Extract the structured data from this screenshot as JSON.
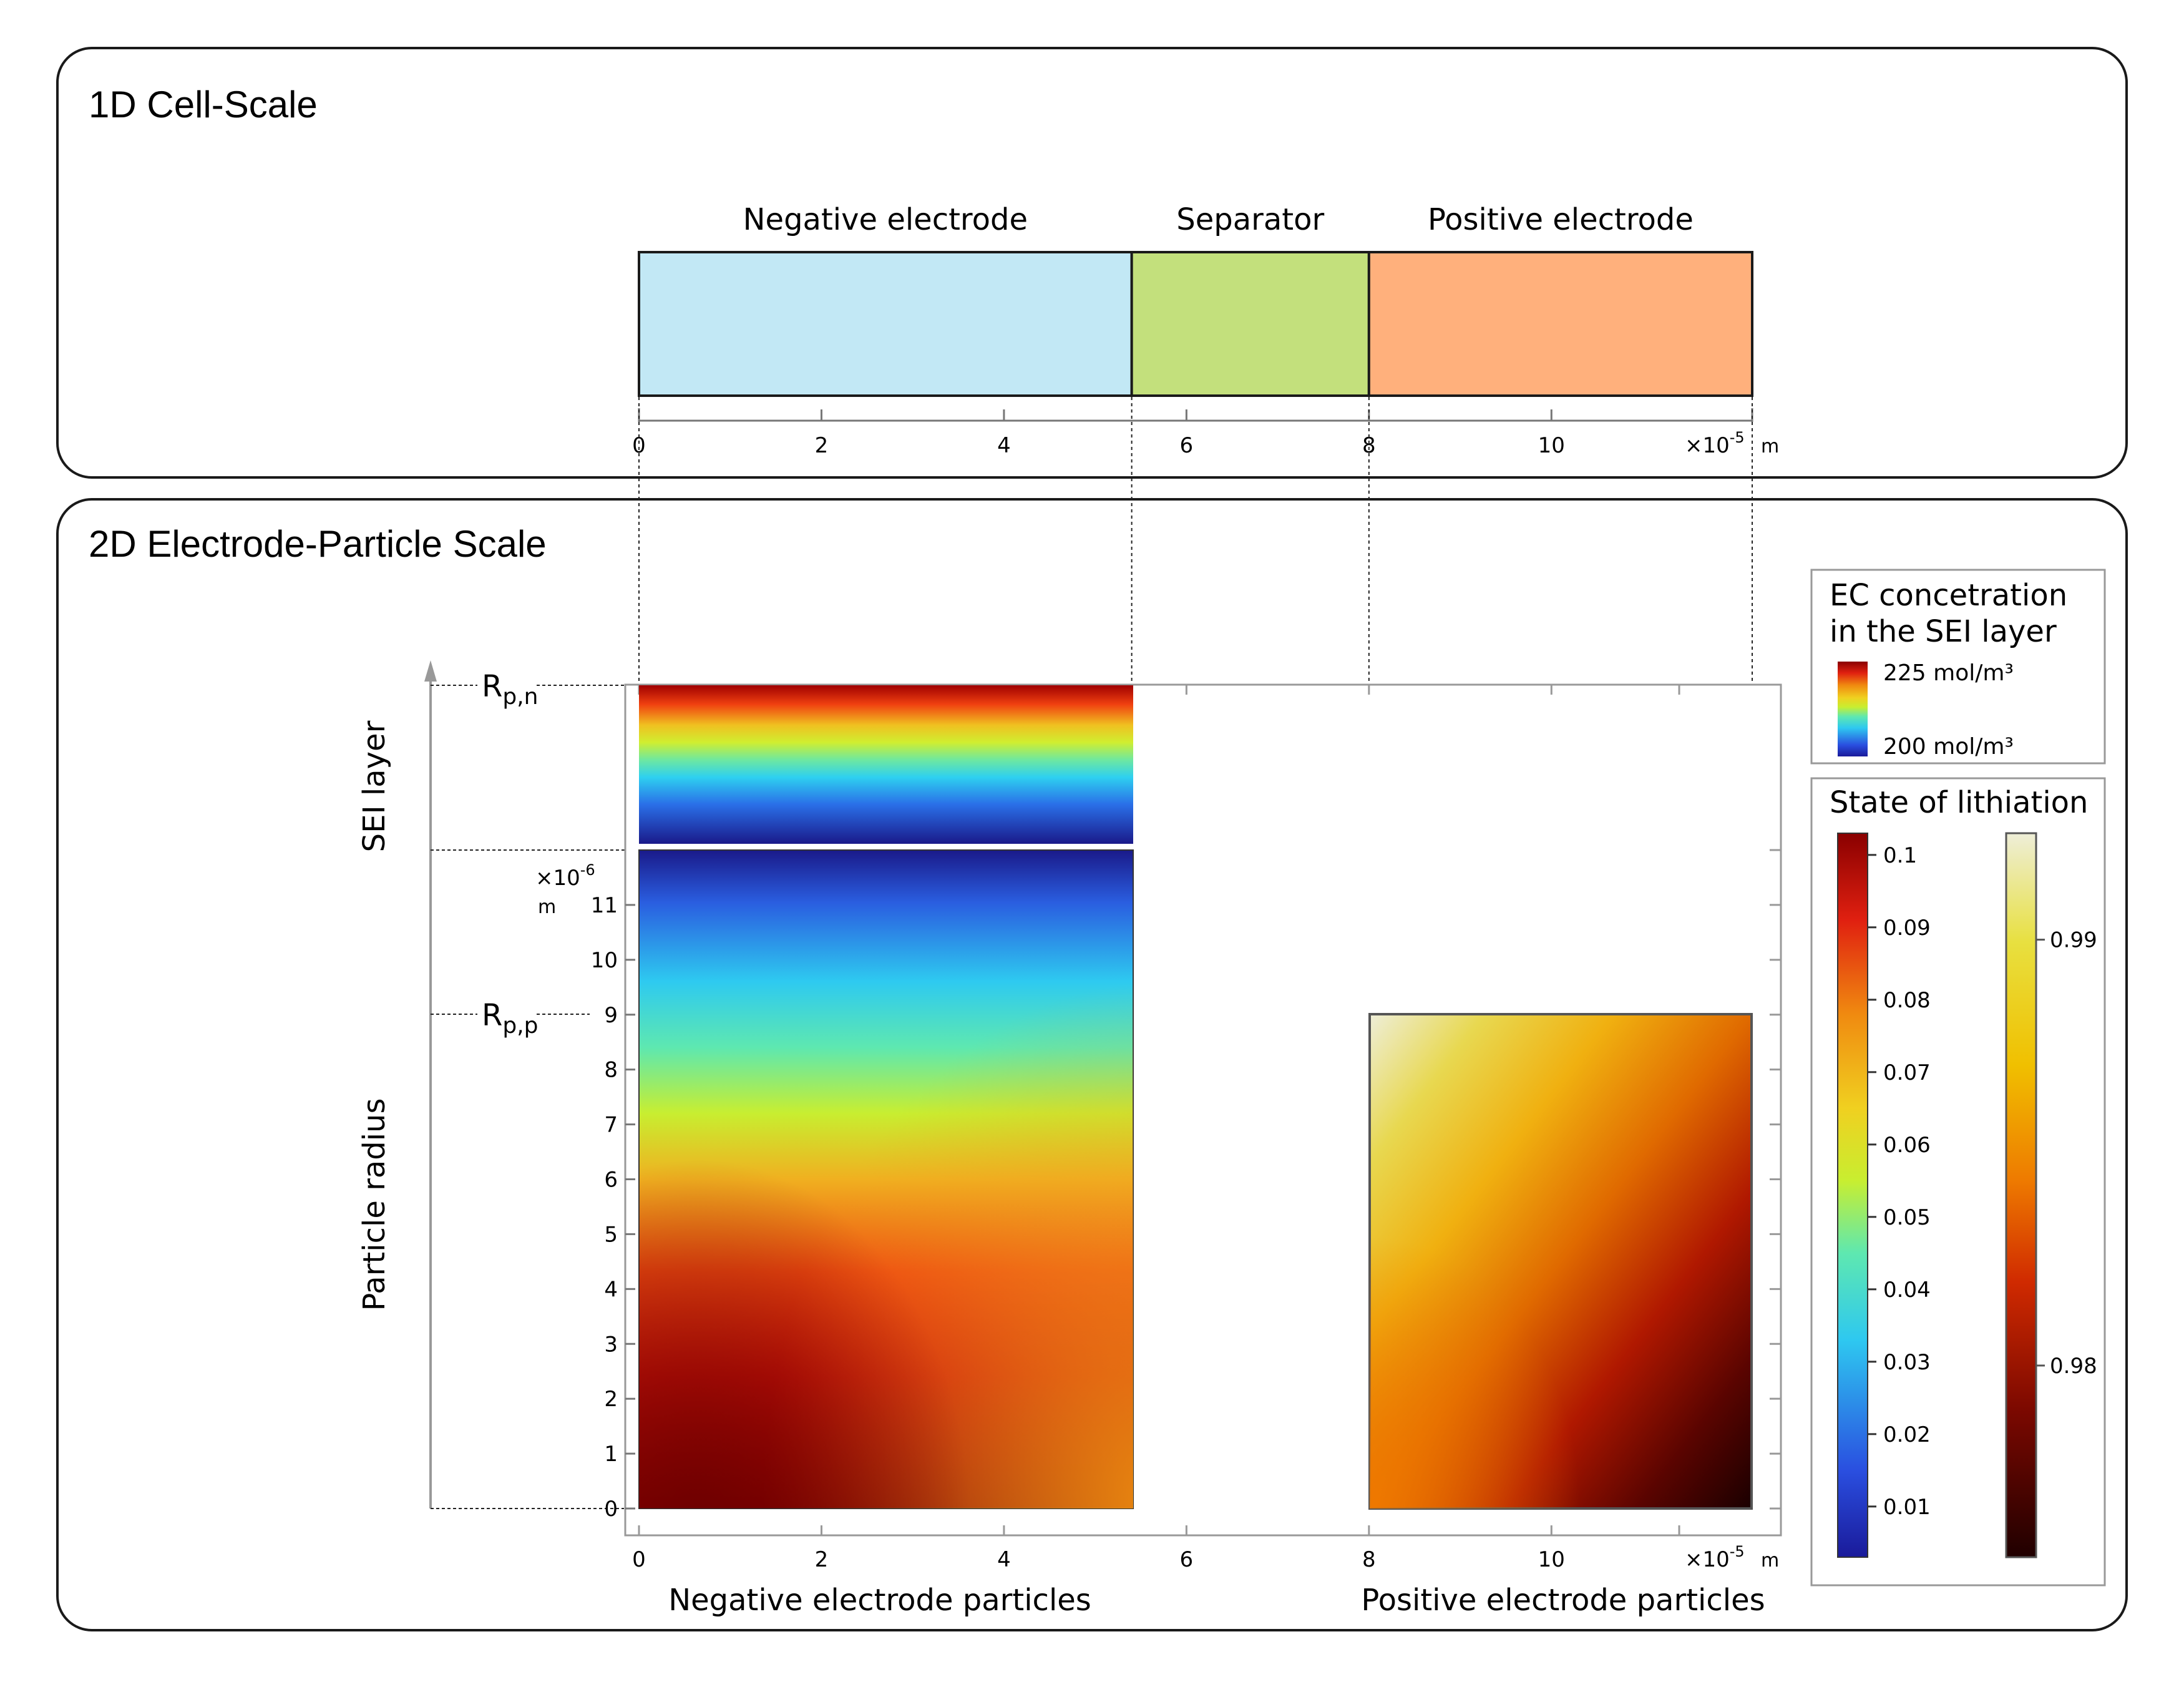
{
  "panels": {
    "cell_scale_title": "1D Cell-Scale",
    "particle_scale_title": "2D Electrode-Particle Scale"
  },
  "domains": [
    {
      "label": "Negative electrode",
      "x0": 0,
      "x1": 5.4,
      "color": "#c2e8f5"
    },
    {
      "label": "Separator",
      "x0": 5.4,
      "x1": 8.0,
      "color": "#c3e07c"
    },
    {
      "label": "Positive electrode",
      "x0": 8.0,
      "x1": 12.2,
      "color": "#ffb07c"
    }
  ],
  "x_axis": {
    "ticks": [
      "0",
      "2",
      "4",
      "6",
      "8",
      "10"
    ],
    "tick_values": [
      0,
      2,
      4,
      6,
      8,
      10
    ],
    "multiplier": "×10",
    "exponent": "-5",
    "unit": "m",
    "range": [
      0,
      12.2
    ]
  },
  "y_axis": {
    "ticks": [
      "0",
      "1",
      "2",
      "3",
      "4",
      "5",
      "6",
      "7",
      "8",
      "9",
      "10",
      "11"
    ],
    "tick_values": [
      0,
      1,
      2,
      3,
      4,
      5,
      6,
      7,
      8,
      9,
      10,
      11
    ],
    "multiplier": "×10",
    "exponent": "-6",
    "unit": "m",
    "range": [
      0,
      12
    ]
  },
  "side_labels": {
    "sei_layer": "SEI layer",
    "particle_radius": "Particle radius",
    "rpn_main": "R",
    "rpn_sub": "p,n",
    "rpp_main": "R",
    "rpp_sub": "p,p"
  },
  "particle_labels": {
    "negative": "Negative electrode particles",
    "positive": "Positive electrode particles"
  },
  "legend_ec": {
    "title_line1": "EC concetration",
    "title_line2": "in the SEI layer",
    "max_label": "225 mol/m³",
    "min_label": "200 mol/m³",
    "max_value": 225,
    "min_value": 200
  },
  "legend_lithiation": {
    "title": "State of lithiation",
    "negative_ticks": [
      "0.1",
      "0.09",
      "0.08",
      "0.07",
      "0.06",
      "0.05",
      "0.04",
      "0.03",
      "0.02",
      "0.01"
    ],
    "negative_tick_values": [
      0.1,
      0.09,
      0.08,
      0.07,
      0.06,
      0.05,
      0.04,
      0.03,
      0.02,
      0.01
    ],
    "negative_range": [
      0.003,
      0.103
    ],
    "positive_ticks": [
      "0.99",
      "0.98"
    ],
    "positive_tick_values": [
      0.99,
      0.98
    ],
    "positive_range": [
      0.9755,
      0.9925
    ]
  },
  "colors": {
    "frame": "#1a1a1a",
    "jet_colormap": [
      "#1a1a9a",
      "#2a6fe8",
      "#2ec8f0",
      "#5ee8b0",
      "#c8ee30",
      "#f0d020",
      "#f08a10",
      "#e02010",
      "#8a0000"
    ],
    "heat_colormap": [
      "#200000",
      "#7a0800",
      "#d02a00",
      "#ee7a00",
      "#f0c000",
      "#e8e040",
      "#eeeed8"
    ]
  }
}
